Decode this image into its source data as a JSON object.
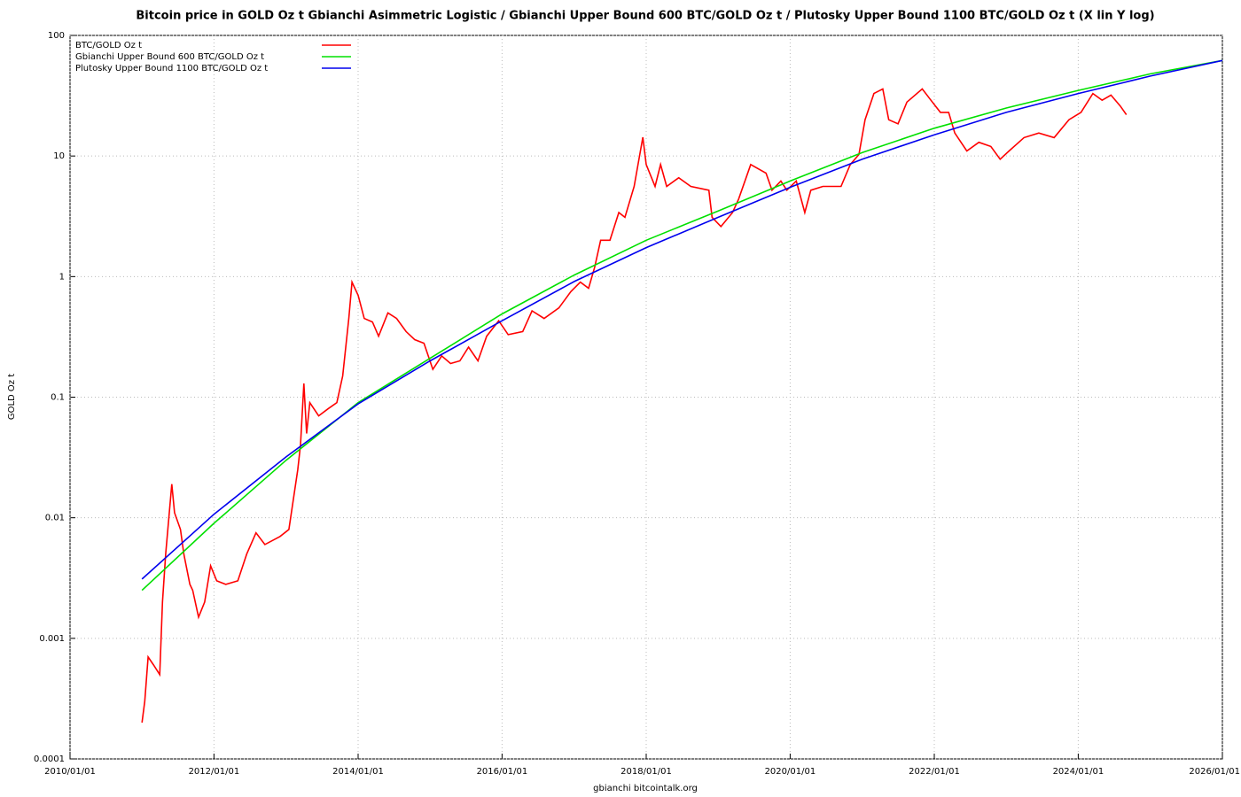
{
  "chart_data": {
    "type": "line",
    "title": "Bitcoin price in GOLD Oz t Gbianchi Asimmetric Logistic / Gbianchi Upper Bound 600  BTC/GOLD Oz t / Plutosky Upper Bound 1100  BTC/GOLD Oz t  (X lin Y log)",
    "x_label": "gbianchi bitcointalk.org",
    "y_label": "GOLD Oz t",
    "log_y": true,
    "grid": true,
    "legend": "upper left",
    "xlim": [
      "2010/01/01",
      "2026/01/01"
    ],
    "xticks": [
      "2010/01/01",
      "2012/01/01",
      "2014/01/01",
      "2016/01/01",
      "2018/01/01",
      "2020/01/01",
      "2022/01/01",
      "2024/01/01",
      "2026/01/01"
    ],
    "ylim": [
      0.0001,
      100
    ],
    "yticks": [
      0.0001,
      0.001,
      0.01,
      0.1,
      1,
      10,
      100
    ],
    "series": [
      {
        "name": "BTC/GOLD Oz t",
        "color": "#ff0000",
        "x": [
          "2011/01/01",
          "2011/01/15",
          "2011/02/01",
          "2011/03/01",
          "2011/04/01",
          "2011/04/15",
          "2011/05/01",
          "2011/06/01",
          "2011/06/15",
          "2011/07/15",
          "2011/08/01",
          "2011/09/01",
          "2011/09/15",
          "2011/10/15",
          "2011/11/15",
          "2011/12/15",
          "2012/01/15",
          "2012/03/01",
          "2012/05/01",
          "2012/06/15",
          "2012/08/01",
          "2012/09/15",
          "2012/12/01",
          "2013/01/15",
          "2013/03/01",
          "2013/03/15",
          "2013/04/01",
          "2013/04/15",
          "2013/05/01",
          "2013/06/15",
          "2013/08/01",
          "2013/09/15",
          "2013/10/15",
          "2013/11/15",
          "2013/12/01",
          "2014/01/01",
          "2014/02/01",
          "2014/03/15",
          "2014/04/15",
          "2014/06/01",
          "2014/07/15",
          "2014/09/01",
          "2014/10/15",
          "2014/12/01",
          "2015/01/15",
          "2015/03/01",
          "2015/04/15",
          "2015/06/01",
          "2015/07/15",
          "2015/09/01",
          "2015/10/15",
          "2015/12/15",
          "2016/02/01",
          "2016/04/15",
          "2016/06/01",
          "2016/08/01",
          "2016/10/15",
          "2016/12/15",
          "2017/02/01",
          "2017/03/15",
          "2017/04/15",
          "2017/05/15",
          "2017/07/01",
          "2017/08/15",
          "2017/09/15",
          "2017/11/01",
          "2017/12/15",
          "2018/01/01",
          "2018/02/15",
          "2018/03/15",
          "2018/04/15",
          "2018/06/15",
          "2018/08/15",
          "2018/11/15",
          "2018/12/01",
          "2019/01/15",
          "2019/03/15",
          "2019/04/15",
          "2019/06/15",
          "2019/09/01",
          "2019/10/01",
          "2019/11/15",
          "2019/12/15",
          "2020/02/01",
          "2020/03/15",
          "2020/04/15",
          "2020/06/15",
          "2020/09/15",
          "2020/11/01",
          "2020/12/15",
          "2021/01/15",
          "2021/03/01",
          "2021/04/15",
          "2021/05/15",
          "2021/07/01",
          "2021/08/15",
          "2021/11/01",
          "2021/12/15",
          "2022/02/01",
          "2022/03/15",
          "2022/04/15",
          "2022/06/15",
          "2022/08/15",
          "2022/10/15",
          "2022/12/01",
          "2023/01/15",
          "2023/04/01",
          "2023/06/15",
          "2023/09/01",
          "2023/11/15",
          "2024/01/15",
          "2024/03/15",
          "2024/05/01",
          "2024/06/15",
          "2024/08/01",
          "2024/09/01"
        ],
        "values": [
          0.0002,
          0.0003,
          0.0007,
          0.0006,
          0.0005,
          0.002,
          0.005,
          0.019,
          0.011,
          0.008,
          0.005,
          0.0028,
          0.0025,
          0.0015,
          0.002,
          0.004,
          0.003,
          0.0028,
          0.003,
          0.005,
          0.0075,
          0.006,
          0.007,
          0.008,
          0.025,
          0.04,
          0.13,
          0.05,
          0.09,
          0.07,
          0.08,
          0.09,
          0.15,
          0.45,
          0.9,
          0.7,
          0.45,
          0.42,
          0.32,
          0.5,
          0.45,
          0.35,
          0.3,
          0.28,
          0.17,
          0.22,
          0.19,
          0.2,
          0.26,
          0.2,
          0.32,
          0.43,
          0.33,
          0.35,
          0.52,
          0.45,
          0.55,
          0.75,
          0.9,
          0.8,
          1.2,
          2.0,
          2.0,
          3.4,
          3.1,
          5.6,
          14.3,
          8.5,
          5.6,
          8.5,
          5.6,
          6.6,
          5.6,
          5.2,
          3.1,
          2.6,
          3.4,
          4.4,
          8.5,
          7.2,
          5.2,
          6.2,
          5.2,
          6.2,
          3.4,
          5.2,
          5.6,
          5.6,
          8.5,
          10.3,
          20,
          33,
          36,
          20,
          18.5,
          28,
          36,
          29,
          23,
          23,
          15.5,
          11,
          13,
          12,
          9.4,
          11,
          14.2,
          15.5,
          14.2,
          20,
          23,
          33,
          29,
          32,
          26,
          22
        ]
      },
      {
        "name": "Gbianchi Upper Bound 600  BTC/GOLD Oz t",
        "color": "#00e000",
        "x": [
          "2011/01/01",
          "2012/01/01",
          "2013/01/01",
          "2014/01/01",
          "2015/01/01",
          "2016/01/01",
          "2017/01/01",
          "2018/01/01",
          "2019/01/01",
          "2020/01/01",
          "2021/01/01",
          "2022/01/01",
          "2023/01/01",
          "2024/01/01",
          "2025/01/01",
          "2026/01/01"
        ],
        "values": [
          0.0025,
          0.009,
          0.03,
          0.09,
          0.21,
          0.49,
          1.03,
          2.0,
          3.5,
          6.2,
          10.7,
          17,
          25,
          35,
          48,
          62
        ]
      },
      {
        "name": "Plutosky Upper Bound 1100  BTC/GOLD Oz t",
        "color": "#0000ee",
        "x": [
          "2011/01/01",
          "2012/01/01",
          "2013/01/01",
          "2014/01/01",
          "2015/01/01",
          "2016/01/01",
          "2017/01/01",
          "2018/01/01",
          "2019/01/01",
          "2020/01/01",
          "2021/01/01",
          "2022/01/01",
          "2023/01/01",
          "2024/01/01",
          "2025/01/01",
          "2026/01/01"
        ],
        "values": [
          0.0031,
          0.0107,
          0.032,
          0.088,
          0.2,
          0.43,
          0.91,
          1.74,
          3.1,
          5.5,
          9.4,
          15,
          23,
          33,
          46,
          62
        ]
      }
    ]
  }
}
